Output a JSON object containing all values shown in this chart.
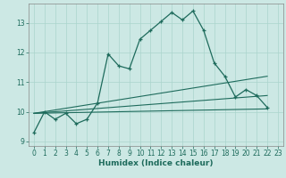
{
  "xlabel": "Humidex (Indice chaleur)",
  "background_color": "#cce8e4",
  "grid_color": "#aad4cc",
  "line_color": "#1e6b5c",
  "xlim": [
    -0.5,
    23.5
  ],
  "ylim": [
    8.85,
    13.65
  ],
  "yticks": [
    9,
    10,
    11,
    12,
    13
  ],
  "xticks": [
    0,
    1,
    2,
    3,
    4,
    5,
    6,
    7,
    8,
    9,
    10,
    11,
    12,
    13,
    14,
    15,
    16,
    17,
    18,
    19,
    20,
    21,
    22,
    23
  ],
  "series_main": [
    [
      0,
      9.3
    ],
    [
      1,
      10.0
    ],
    [
      2,
      9.75
    ],
    [
      3,
      9.95
    ],
    [
      4,
      9.6
    ],
    [
      5,
      9.75
    ],
    [
      6,
      10.3
    ],
    [
      7,
      11.95
    ],
    [
      8,
      11.55
    ],
    [
      9,
      11.45
    ],
    [
      10,
      12.45
    ],
    [
      11,
      12.75
    ],
    [
      12,
      13.05
    ],
    [
      13,
      13.35
    ],
    [
      14,
      13.1
    ],
    [
      15,
      13.4
    ],
    [
      16,
      12.75
    ],
    [
      17,
      11.65
    ],
    [
      18,
      11.2
    ],
    [
      19,
      10.5
    ],
    [
      20,
      10.75
    ],
    [
      21,
      10.55
    ],
    [
      22,
      10.15
    ]
  ],
  "line_flat": [
    [
      0,
      9.95
    ],
    [
      22,
      10.1
    ]
  ],
  "line_rising1": [
    [
      0,
      9.95
    ],
    [
      22,
      11.2
    ]
  ],
  "line_rising2": [
    [
      0,
      9.95
    ],
    [
      22,
      10.55
    ]
  ]
}
